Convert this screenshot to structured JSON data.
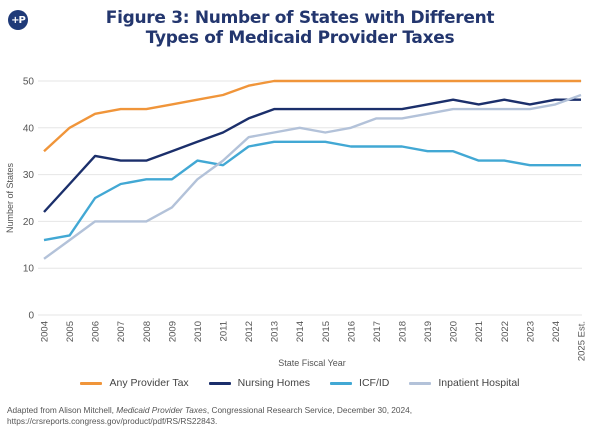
{
  "header": {
    "logo_text": "+P",
    "title_line1": "Figure 3: Number of States with Different",
    "title_line2": "Types of Medicaid Provider Taxes"
  },
  "colors": {
    "any_provider_tax": "#f0953a",
    "nursing_homes": "#1b2f6b",
    "icf_id": "#42a8d4",
    "inpatient_hospital": "#b3c2d9",
    "title": "#23366e",
    "grid": "#e6e6e6"
  },
  "chart_data": {
    "type": "line",
    "title": "Figure 3: Number of States with Different Types of Medicaid Provider Taxes",
    "xlabel": "State Fiscal Year",
    "ylabel": "Number of States",
    "ylim": [
      0,
      50
    ],
    "yticks": [
      "0",
      "10",
      "20",
      "30",
      "40",
      "50"
    ],
    "ytick_values": [
      0,
      10,
      20,
      30,
      40,
      50
    ],
    "grid": true,
    "legend_position": "bottom",
    "x": [
      "2004",
      "2005",
      "2006",
      "2007",
      "2008",
      "2009",
      "2010",
      "2011",
      "2012",
      "2013",
      "2014",
      "2015",
      "2016",
      "2017",
      "2018",
      "2019",
      "2020",
      "2021",
      "2022",
      "2023",
      "2024",
      "2025 Est."
    ],
    "series": [
      {
        "name": "Any Provider Tax",
        "color": "#f0953a",
        "values": [
          35,
          40,
          43,
          44,
          44,
          45,
          46,
          47,
          49,
          50,
          50,
          50,
          50,
          50,
          50,
          50,
          50,
          50,
          50,
          50,
          50,
          50
        ]
      },
      {
        "name": "Nursing Homes",
        "color": "#1b2f6b",
        "values": [
          22,
          28,
          34,
          33,
          33,
          35,
          37,
          39,
          42,
          44,
          44,
          44,
          44,
          44,
          44,
          45,
          46,
          45,
          46,
          45,
          46,
          46
        ]
      },
      {
        "name": "ICF/ID",
        "color": "#42a8d4",
        "values": [
          16,
          17,
          25,
          28,
          29,
          29,
          33,
          32,
          36,
          37,
          37,
          37,
          36,
          36,
          36,
          35,
          35,
          33,
          33,
          32,
          32,
          32
        ]
      },
      {
        "name": "Inpatient Hospital",
        "color": "#b3c2d9",
        "values": [
          12,
          16,
          20,
          20,
          20,
          23,
          29,
          33,
          38,
          39,
          40,
          39,
          40,
          42,
          42,
          43,
          44,
          44,
          44,
          44,
          45,
          47
        ]
      }
    ]
  },
  "legend": {
    "items": [
      {
        "label": "Any Provider Tax",
        "color": "#f0953a"
      },
      {
        "label": "Nursing Homes",
        "color": "#1b2f6b"
      },
      {
        "label": "ICF/ID",
        "color": "#42a8d4"
      },
      {
        "label": "Inpatient Hospital",
        "color": "#b3c2d9"
      }
    ]
  },
  "source": {
    "prefix": "Adapted from Alison Mitchell, ",
    "italic_title": "Medicaid Provider Taxes",
    "suffix": ", Congressional Research Service, December 30, 2024, https://crsreports.congress.gov/product/pdf/RS/RS22843."
  }
}
